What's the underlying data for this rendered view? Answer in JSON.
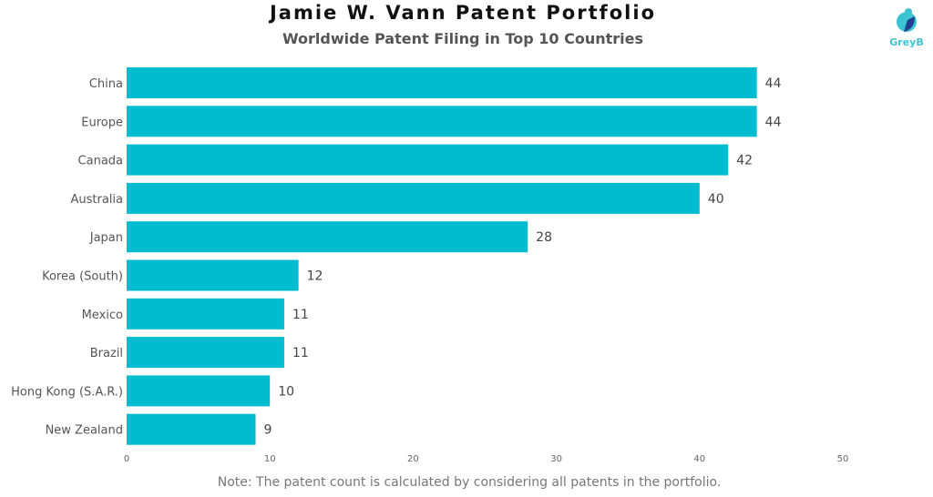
{
  "chart_data": {
    "type": "bar",
    "orientation": "horizontal",
    "title": "Jamie W. Vann Patent Portfolio",
    "subtitle": "Worldwide Patent Filing in Top 10 Countries",
    "categories": [
      "China",
      "Europe",
      "Canada",
      "Australia",
      "Japan",
      "Korea (South)",
      "Mexico",
      "Brazil",
      "Hong Kong (S.A.R.)",
      "New Zealand"
    ],
    "values": [
      44,
      44,
      42,
      40,
      28,
      12,
      11,
      11,
      10,
      9
    ],
    "xlim": [
      0,
      50
    ],
    "xticks": [
      0,
      10,
      20,
      30,
      40,
      50
    ],
    "xlabel": "",
    "ylabel": "",
    "grid": false,
    "bar_color": "#00BCD0",
    "note": "Note: The patent count is calculated by considering all patents in the portfolio."
  },
  "logo": {
    "text": "GreyB"
  }
}
